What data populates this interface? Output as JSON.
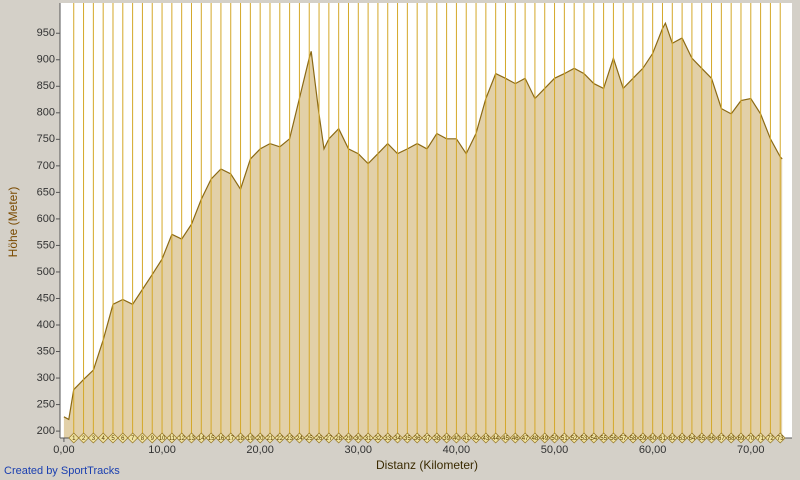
{
  "chart_data": {
    "type": "area",
    "y_label": "Höhe (Meter)",
    "x_label": "Distanz (Kilometer)",
    "credit": "Created by SportTracks",
    "x": [
      0,
      0.5,
      1,
      2,
      3,
      4,
      5,
      6,
      7,
      8,
      9,
      10,
      11,
      12,
      13,
      14,
      15,
      16,
      17,
      18,
      19,
      20,
      21,
      22,
      23,
      24,
      25,
      25.2,
      26,
      26.5,
      27,
      28,
      29,
      30,
      31,
      32,
      33,
      34,
      35,
      36,
      37,
      38,
      39,
      40,
      41,
      42,
      43,
      44,
      45,
      46,
      47,
      48,
      49,
      50,
      51,
      52,
      53,
      54,
      55,
      56,
      57,
      58,
      59,
      60,
      61,
      61.3,
      62,
      63,
      64,
      65,
      66,
      67,
      68,
      69,
      70,
      71,
      72,
      73,
      73.2
    ],
    "values": [
      227,
      222,
      278,
      297,
      315,
      372,
      439,
      448,
      439,
      467,
      495,
      524,
      571,
      562,
      590,
      637,
      675,
      694,
      685,
      656,
      713,
      732,
      742,
      736,
      751,
      827,
      903,
      916,
      798,
      732,
      751,
      770,
      732,
      723,
      704,
      723,
      742,
      723,
      732,
      742,
      732,
      761,
      751,
      751,
      723,
      761,
      827,
      874,
      865,
      855,
      865,
      827,
      846,
      865,
      874,
      884,
      874,
      855,
      846,
      903,
      846,
      865,
      884,
      912,
      959,
      969,
      931,
      941,
      903,
      884,
      865,
      808,
      798,
      823,
      827,
      798,
      751,
      717,
      713
    ],
    "color": "#8b6914",
    "fill_color": "#e2d0a8",
    "marker_color": "#d4a829",
    "markers": [
      1,
      2,
      3,
      4,
      5,
      6,
      7,
      8,
      9,
      10,
      11,
      12,
      13,
      14,
      15,
      16,
      17,
      18,
      19,
      20,
      21,
      22,
      23,
      24,
      25,
      26,
      27,
      28,
      29,
      30,
      31,
      32,
      33,
      34,
      35,
      36,
      37,
      38,
      39,
      40,
      41,
      42,
      43,
      44,
      45,
      46,
      47,
      48,
      49,
      50,
      51,
      52,
      53,
      54,
      55,
      56,
      57,
      58,
      59,
      60,
      61,
      62,
      63,
      64,
      65,
      66,
      67,
      68,
      69,
      70,
      71,
      72,
      73
    ],
    "xlim": [
      -0.4,
      74.2
    ],
    "xticks": [
      {
        "value": 0,
        "label": "0,00"
      },
      {
        "value": 10,
        "label": "10,00"
      },
      {
        "value": 20,
        "label": "20,00"
      },
      {
        "value": 30,
        "label": "30,00"
      },
      {
        "value": 40,
        "label": "40,00"
      },
      {
        "value": 50,
        "label": "50,00"
      },
      {
        "value": 60,
        "label": "60,00"
      },
      {
        "value": 70,
        "label": "70,00"
      }
    ],
    "ylim": [
      187,
      1007
    ],
    "yticks": [
      200,
      250,
      300,
      350,
      400,
      450,
      500,
      550,
      600,
      650,
      700,
      750,
      800,
      850,
      900,
      950
    ]
  }
}
